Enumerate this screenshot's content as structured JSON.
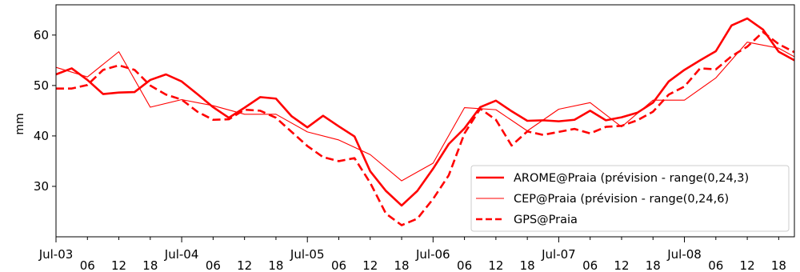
{
  "chart_data": {
    "type": "line",
    "ylabel": "mm",
    "ylim": [
      20,
      66
    ],
    "xlim": [
      "2018-07-03T00:00",
      "2018-07-08T21:00"
    ],
    "grid": false,
    "legend_position": "lower-right",
    "y_ticks": [
      30,
      40,
      50,
      60
    ],
    "x_ticks": [
      {
        "t": "2018-07-03T00:00",
        "label": "Jul-03",
        "major": true
      },
      {
        "t": "2018-07-03T06:00",
        "label": "06",
        "major": false
      },
      {
        "t": "2018-07-03T12:00",
        "label": "12",
        "major": false
      },
      {
        "t": "2018-07-03T18:00",
        "label": "18",
        "major": false
      },
      {
        "t": "2018-07-04T00:00",
        "label": "Jul-04",
        "major": true
      },
      {
        "t": "2018-07-04T06:00",
        "label": "06",
        "major": false
      },
      {
        "t": "2018-07-04T12:00",
        "label": "12",
        "major": false
      },
      {
        "t": "2018-07-04T18:00",
        "label": "18",
        "major": false
      },
      {
        "t": "2018-07-05T00:00",
        "label": "Jul-05",
        "major": true
      },
      {
        "t": "2018-07-05T06:00",
        "label": "06",
        "major": false
      },
      {
        "t": "2018-07-05T12:00",
        "label": "12",
        "major": false
      },
      {
        "t": "2018-07-05T18:00",
        "label": "18",
        "major": false
      },
      {
        "t": "2018-07-06T00:00",
        "label": "Jul-06",
        "major": true
      },
      {
        "t": "2018-07-06T06:00",
        "label": "06",
        "major": false
      },
      {
        "t": "2018-07-06T12:00",
        "label": "12",
        "major": false
      },
      {
        "t": "2018-07-06T18:00",
        "label": "18",
        "major": false
      },
      {
        "t": "2018-07-07T00:00",
        "label": "Jul-07",
        "major": true
      },
      {
        "t": "2018-07-07T06:00",
        "label": "06",
        "major": false
      },
      {
        "t": "2018-07-07T12:00",
        "label": "12",
        "major": false
      },
      {
        "t": "2018-07-07T18:00",
        "label": "18",
        "major": false
      },
      {
        "t": "2018-07-08T00:00",
        "label": "Jul-08",
        "major": true
      },
      {
        "t": "2018-07-08T06:00",
        "label": "06",
        "major": false
      },
      {
        "t": "2018-07-08T12:00",
        "label": "12",
        "major": false
      },
      {
        "t": "2018-07-08T18:00",
        "label": "18",
        "major": false
      }
    ],
    "series": [
      {
        "name": "AROME@Praia (prévision - range(0,24,3)",
        "color": "#ff0000",
        "style": "solid-thick",
        "points": [
          [
            "2018-07-03T00:00",
            52.2
          ],
          [
            "2018-07-03T03:00",
            53.4
          ],
          [
            "2018-07-03T06:00",
            51.1
          ],
          [
            "2018-07-03T09:00",
            48.3
          ],
          [
            "2018-07-03T12:00",
            48.6
          ],
          [
            "2018-07-03T15:00",
            48.7
          ],
          [
            "2018-07-03T18:00",
            51.1
          ],
          [
            "2018-07-03T21:00",
            52.2
          ],
          [
            "2018-07-04T00:00",
            50.8
          ],
          [
            "2018-07-04T03:00",
            48.3
          ],
          [
            "2018-07-04T06:00",
            45.7
          ],
          [
            "2018-07-04T09:00",
            43.6
          ],
          [
            "2018-07-04T12:00",
            45.6
          ],
          [
            "2018-07-04T15:00",
            47.7
          ],
          [
            "2018-07-04T18:00",
            47.4
          ],
          [
            "2018-07-04T21:00",
            43.9
          ],
          [
            "2018-07-05T00:00",
            41.7
          ],
          [
            "2018-07-05T03:00",
            44.0
          ],
          [
            "2018-07-05T06:00",
            41.9
          ],
          [
            "2018-07-05T09:00",
            39.9
          ],
          [
            "2018-07-05T12:00",
            33.0
          ],
          [
            "2018-07-05T15:00",
            29.1
          ],
          [
            "2018-07-05T18:00",
            26.2
          ],
          [
            "2018-07-05T21:00",
            29.1
          ],
          [
            "2018-07-06T00:00",
            33.5
          ],
          [
            "2018-07-06T03:00",
            38.4
          ],
          [
            "2018-07-06T06:00",
            41.5
          ],
          [
            "2018-07-06T09:00",
            45.7
          ],
          [
            "2018-07-06T12:00",
            47.0
          ],
          [
            "2018-07-06T15:00",
            44.9
          ],
          [
            "2018-07-06T18:00",
            43.0
          ],
          [
            "2018-07-06T21:00",
            43.1
          ],
          [
            "2018-07-07T00:00",
            42.9
          ],
          [
            "2018-07-07T03:00",
            43.2
          ],
          [
            "2018-07-07T06:00",
            45.0
          ],
          [
            "2018-07-07T09:00",
            43.1
          ],
          [
            "2018-07-07T12:00",
            43.7
          ],
          [
            "2018-07-07T15:00",
            44.6
          ],
          [
            "2018-07-07T18:00",
            46.6
          ],
          [
            "2018-07-07T21:00",
            50.8
          ],
          [
            "2018-07-08T00:00",
            53.1
          ],
          [
            "2018-07-08T03:00",
            55.0
          ],
          [
            "2018-07-08T06:00",
            56.8
          ],
          [
            "2018-07-08T09:00",
            61.9
          ],
          [
            "2018-07-08T12:00",
            63.3
          ],
          [
            "2018-07-08T15:00",
            61.1
          ],
          [
            "2018-07-08T18:00",
            56.7
          ],
          [
            "2018-07-08T21:00",
            55.0
          ]
        ]
      },
      {
        "name": "CEP@Praia (prévision - range(0,24,6)",
        "color": "#ff0000",
        "style": "solid-thin",
        "points": [
          [
            "2018-07-03T00:00",
            53.6
          ],
          [
            "2018-07-03T06:00",
            51.7
          ],
          [
            "2018-07-03T12:00",
            56.7
          ],
          [
            "2018-07-03T18:00",
            45.7
          ],
          [
            "2018-07-04T00:00",
            47.2
          ],
          [
            "2018-07-04T06:00",
            46.0
          ],
          [
            "2018-07-04T12:00",
            44.3
          ],
          [
            "2018-07-04T18:00",
            44.3
          ],
          [
            "2018-07-05T00:00",
            40.8
          ],
          [
            "2018-07-05T06:00",
            39.2
          ],
          [
            "2018-07-05T12:00",
            36.3
          ],
          [
            "2018-07-05T18:00",
            31.1
          ],
          [
            "2018-07-06T00:00",
            34.6
          ],
          [
            "2018-07-06T06:00",
            45.6
          ],
          [
            "2018-07-06T12:00",
            45.2
          ],
          [
            "2018-07-06T18:00",
            41.0
          ],
          [
            "2018-07-07T00:00",
            45.3
          ],
          [
            "2018-07-07T06:00",
            46.6
          ],
          [
            "2018-07-07T12:00",
            41.8
          ],
          [
            "2018-07-07T18:00",
            47.1
          ],
          [
            "2018-07-08T00:00",
            47.1
          ],
          [
            "2018-07-08T06:00",
            51.5
          ],
          [
            "2018-07-08T12:00",
            58.6
          ],
          [
            "2018-07-08T18:00",
            57.4
          ],
          [
            "2018-07-08T21:00",
            55.7
          ]
        ]
      },
      {
        "name": "GPS@Praia",
        "color": "#ff0000",
        "style": "dashed",
        "points": [
          [
            "2018-07-03T00:00",
            49.4
          ],
          [
            "2018-07-03T03:00",
            49.4
          ],
          [
            "2018-07-03T06:00",
            50.1
          ],
          [
            "2018-07-03T09:00",
            53.1
          ],
          [
            "2018-07-03T12:00",
            54.0
          ],
          [
            "2018-07-03T15:00",
            53.1
          ],
          [
            "2018-07-03T18:00",
            50.0
          ],
          [
            "2018-07-03T21:00",
            48.2
          ],
          [
            "2018-07-04T00:00",
            47.2
          ],
          [
            "2018-07-04T03:00",
            44.8
          ],
          [
            "2018-07-04T06:00",
            43.2
          ],
          [
            "2018-07-04T09:00",
            43.3
          ],
          [
            "2018-07-04T12:00",
            45.2
          ],
          [
            "2018-07-04T15:00",
            45.0
          ],
          [
            "2018-07-04T18:00",
            43.6
          ],
          [
            "2018-07-04T21:00",
            40.8
          ],
          [
            "2018-07-05T00:00",
            38.0
          ],
          [
            "2018-07-05T03:00",
            35.8
          ],
          [
            "2018-07-05T06:00",
            35.0
          ],
          [
            "2018-07-05T09:00",
            35.6
          ],
          [
            "2018-07-05T12:00",
            30.7
          ],
          [
            "2018-07-05T15:00",
            24.6
          ],
          [
            "2018-07-05T18:00",
            22.3
          ],
          [
            "2018-07-05T21:00",
            23.6
          ],
          [
            "2018-07-06T00:00",
            27.5
          ],
          [
            "2018-07-06T03:00",
            32.2
          ],
          [
            "2018-07-06T06:00",
            40.5
          ],
          [
            "2018-07-06T09:00",
            45.4
          ],
          [
            "2018-07-06T12:00",
            43.2
          ],
          [
            "2018-07-06T15:00",
            38.1
          ],
          [
            "2018-07-06T18:00",
            40.9
          ],
          [
            "2018-07-06T21:00",
            40.2
          ],
          [
            "2018-07-07T00:00",
            40.8
          ],
          [
            "2018-07-07T03:00",
            41.4
          ],
          [
            "2018-07-07T06:00",
            40.5
          ],
          [
            "2018-07-07T09:00",
            41.8
          ],
          [
            "2018-07-07T12:00",
            42.0
          ],
          [
            "2018-07-07T15:00",
            43.1
          ],
          [
            "2018-07-07T18:00",
            44.8
          ],
          [
            "2018-07-07T21:00",
            48.2
          ],
          [
            "2018-07-08T00:00",
            49.8
          ],
          [
            "2018-07-08T03:00",
            53.4
          ],
          [
            "2018-07-08T06:00",
            53.2
          ],
          [
            "2018-07-08T09:00",
            55.8
          ],
          [
            "2018-07-08T12:00",
            57.7
          ],
          [
            "2018-07-08T15:00",
            60.6
          ],
          [
            "2018-07-08T18:00",
            58.2
          ],
          [
            "2018-07-08T21:00",
            56.6
          ]
        ]
      }
    ]
  }
}
